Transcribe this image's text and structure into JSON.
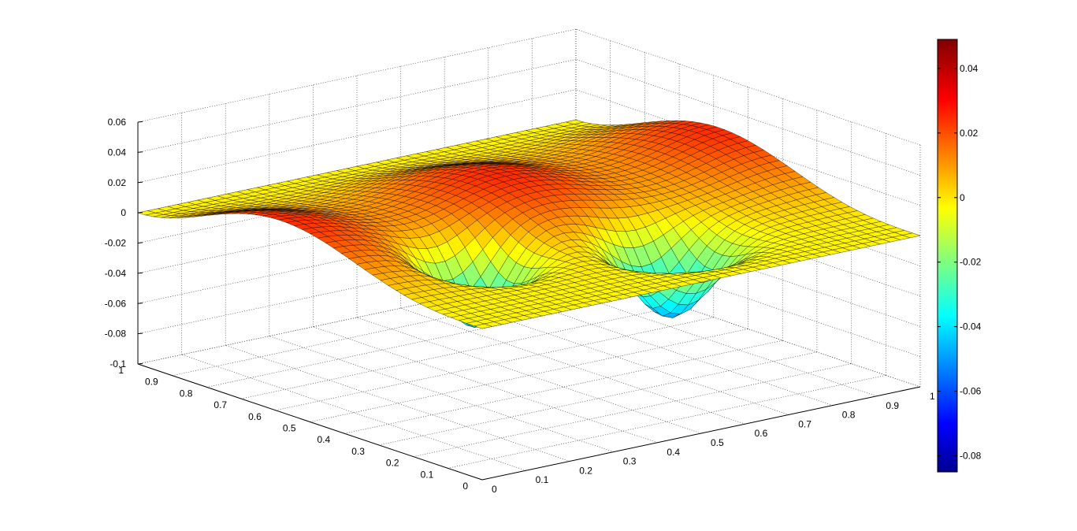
{
  "chart_data": {
    "type": "surface",
    "title": "",
    "xlabel": "",
    "ylabel": "",
    "zlabel": "",
    "xlim": [
      0,
      1
    ],
    "ylim": [
      0,
      1
    ],
    "zlim": [
      -0.1,
      0.06
    ],
    "x_ticks": [
      "0",
      "0.1",
      "0.2",
      "0.3",
      "0.4",
      "0.5",
      "0.6",
      "0.7",
      "0.8",
      "0.9",
      "1"
    ],
    "y_ticks": [
      "0",
      "0.1",
      "0.2",
      "0.3",
      "0.4",
      "0.5",
      "0.6",
      "0.7",
      "0.8",
      "0.9",
      "1"
    ],
    "z_ticks": [
      "0.06",
      "0.04",
      "0.02",
      "0",
      "-0.02",
      "-0.04",
      "-0.06",
      "-0.08",
      "-0.1"
    ],
    "grid": true,
    "colormap": "jet",
    "colorbar": {
      "placement": "right",
      "range": [
        -0.085,
        0.049
      ],
      "ticks": [
        "0.04",
        "0.02",
        "0",
        "-0.02",
        "-0.04",
        "-0.06",
        "-0.08"
      ]
    },
    "surface_summary": {
      "z_max": 0.049,
      "z_min": -0.085,
      "peak_color": "#8b0000",
      "trough_color": "#00008f",
      "edge_color": "#000000"
    }
  }
}
